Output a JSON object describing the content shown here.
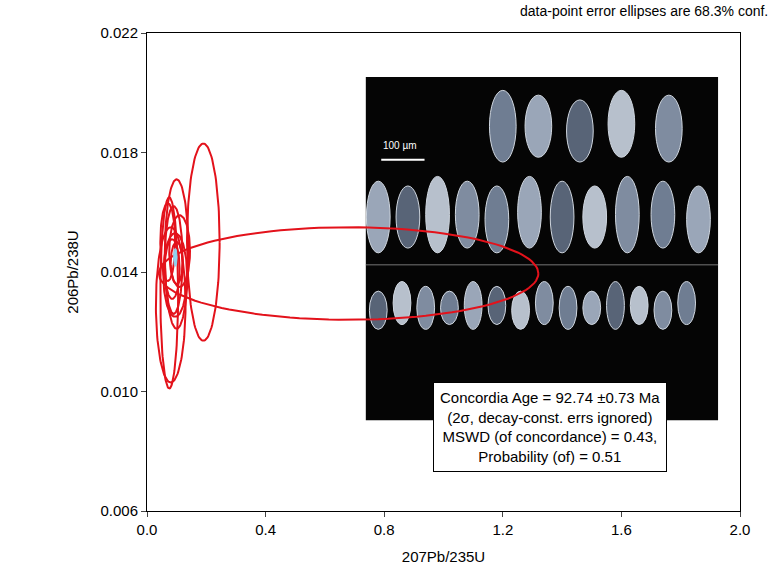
{
  "chart_data": {
    "type": "concordia",
    "note": "data-point error ellipses are 68.3% conf.",
    "x_label": "207Pb/235U",
    "y_label": "206Pb/238U",
    "xlim": [
      0,
      2.0
    ],
    "ylim": [
      0.006,
      0.022
    ],
    "xticks": [
      {
        "value": 0,
        "label": "0.0"
      },
      0.4,
      0.8,
      1.2,
      1.6,
      {
        "value": 2.0,
        "label": "2.0"
      }
    ],
    "yticks": [
      0.006,
      {
        "value": 0.01,
        "label": "0.010"
      },
      0.014,
      0.018,
      0.022
    ],
    "grid": false,
    "color": "#e3121b",
    "ellipses": [
      {
        "x": 0.68,
        "y": 0.01395,
        "x_err": 0.64,
        "y_err": 0.00155
      },
      {
        "x": 0.19,
        "y": 0.015,
        "x_err": 0.055,
        "y_err": 0.0033
      },
      {
        "x": 0.08,
        "y": 0.0129,
        "x_err": 0.05,
        "y_err": 0.0026
      },
      {
        "x": 0.075,
        "y": 0.0133,
        "x_err": 0.03,
        "y_err": 0.0032
      },
      {
        "x": 0.1,
        "y": 0.0146,
        "x_err": 0.04,
        "y_err": 0.0025
      },
      {
        "x": 0.09,
        "y": 0.0144,
        "x_err": 0.03,
        "y_err": 0.0018
      },
      {
        "x": 0.11,
        "y": 0.0147,
        "x_err": 0.035,
        "y_err": 0.0012
      },
      {
        "x": 0.085,
        "y": 0.0141,
        "x_err": 0.025,
        "y_err": 0.001
      },
      {
        "x": 0.095,
        "y": 0.0139,
        "x_err": 0.04,
        "y_err": 0.0014
      },
      {
        "x": 0.07,
        "y": 0.015,
        "x_err": 0.025,
        "y_err": 0.0013
      },
      {
        "x": 0.1,
        "y": 0.0143,
        "x_err": 0.02,
        "y_err": 0.0007
      }
    ],
    "concordia_ellipse": {
      "x": 0.0956,
      "y": 0.01449,
      "x_err": 0.006,
      "y_err": 0.0003,
      "color": "#8fd3f0"
    },
    "scale_label": "100 µm",
    "result_box": [
      "Concordia Age = 92.74 ±0.73 Ma",
      "(2σ, decay-const. errs ignored)",
      "MSWD (of concordance) = 0.43,",
      "Probability (of) = 0.51"
    ]
  }
}
